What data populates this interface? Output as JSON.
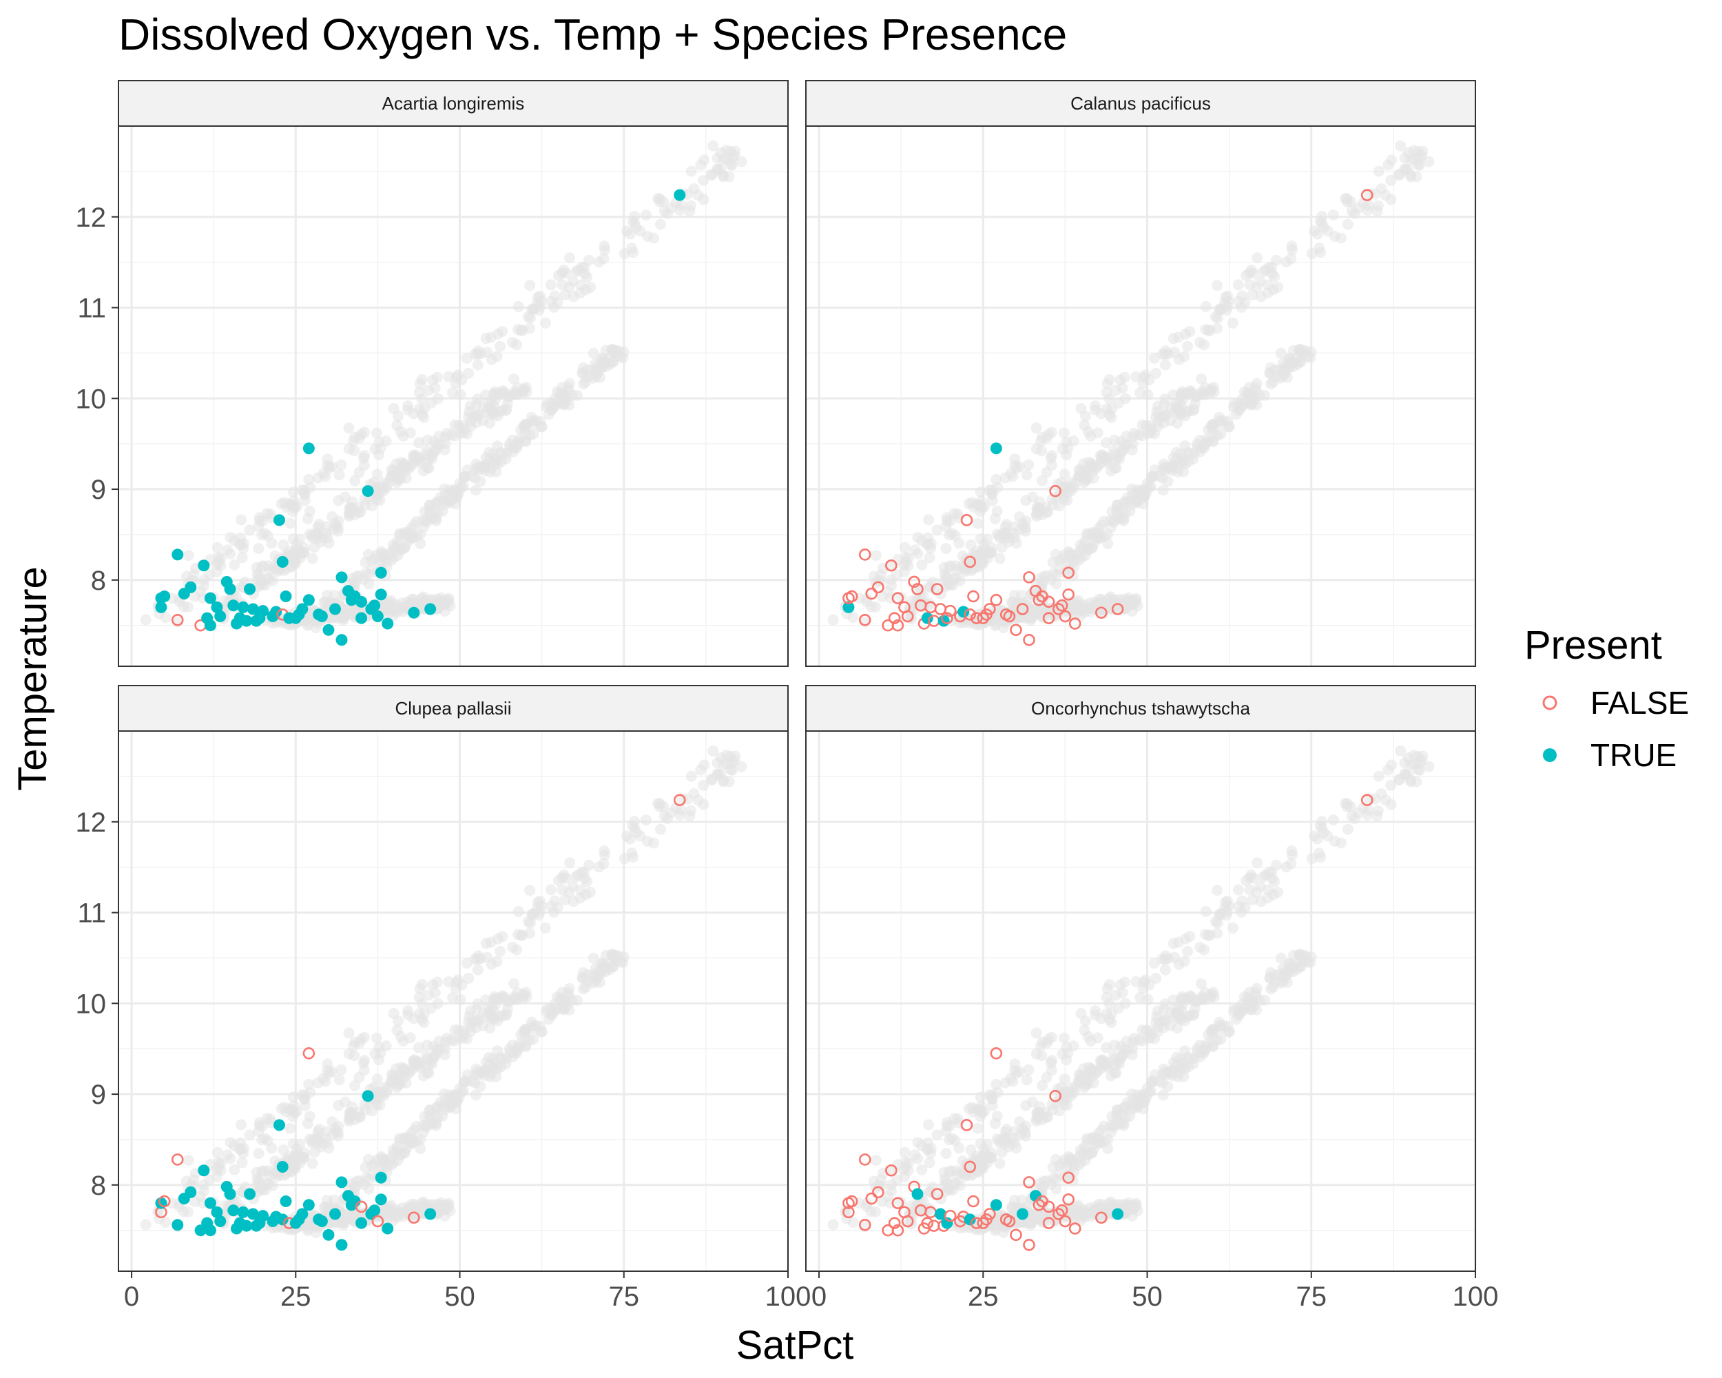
{
  "chart_data": {
    "type": "scatter",
    "title": "Dissolved Oxygen vs. Temp + Species Presence",
    "xlabel": "SatPct",
    "ylabel": "Temperature",
    "xlim": [
      -2,
      100
    ],
    "ylim": [
      7.05,
      13.0
    ],
    "x_ticks": [
      0,
      25,
      50,
      75,
      100
    ],
    "x_tick_labels": [
      "0",
      "25",
      "50",
      "75",
      "100"
    ],
    "y_ticks": [
      8,
      9,
      10,
      11,
      12
    ],
    "y_tick_labels": [
      "8",
      "9",
      "10",
      "11",
      "12"
    ],
    "grid": true,
    "legend": {
      "title": "Present",
      "position": "right",
      "entries": [
        {
          "label": "FALSE",
          "style": "open-circle",
          "color": "#F8766D"
        },
        {
          "label": "TRUE",
          "style": "filled-circle",
          "color": "#00BFC4"
        }
      ]
    },
    "colors": {
      "false": "#F8766D",
      "true": "#00BFC4",
      "background_points": "#E3E3E3",
      "strip": "#F2F2F2"
    },
    "background_clusters": [
      {
        "from": [
          3,
          7.6
        ],
        "to": [
          92,
          12.7
        ],
        "spread": 0.38
      },
      {
        "from": [
          14,
          7.7
        ],
        "to": [
          60,
          10.2
        ],
        "spread": 0.22
      },
      {
        "from": [
          28,
          7.55
        ],
        "to": [
          75,
          10.6
        ],
        "spread": 0.18
      },
      {
        "from": [
          22,
          7.55
        ],
        "to": [
          48,
          7.75
        ],
        "spread": 0.12
      }
    ],
    "samples": [
      [
        4.5,
        7.7
      ],
      [
        4.5,
        7.8
      ],
      [
        5.0,
        7.82
      ],
      [
        7.0,
        8.28
      ],
      [
        7.0,
        7.56
      ],
      [
        8.0,
        7.85
      ],
      [
        9.0,
        7.92
      ],
      [
        10.5,
        7.5
      ],
      [
        11.0,
        8.16
      ],
      [
        11.5,
        7.58
      ],
      [
        12.0,
        7.5
      ],
      [
        12.0,
        7.8
      ],
      [
        13.0,
        7.7
      ],
      [
        13.5,
        7.6
      ],
      [
        14.5,
        7.98
      ],
      [
        15.0,
        7.9
      ],
      [
        15.5,
        7.72
      ],
      [
        16.0,
        7.52
      ],
      [
        16.5,
        7.58
      ],
      [
        17.0,
        7.7
      ],
      [
        17.5,
        7.55
      ],
      [
        18.0,
        7.9
      ],
      [
        18.5,
        7.68
      ],
      [
        19.0,
        7.55
      ],
      [
        19.5,
        7.58
      ],
      [
        20.0,
        7.66
      ],
      [
        21.5,
        7.6
      ],
      [
        22.0,
        7.65
      ],
      [
        22.5,
        8.66
      ],
      [
        23.0,
        8.2
      ],
      [
        23.0,
        7.62
      ],
      [
        23.5,
        7.82
      ],
      [
        24.0,
        7.58
      ],
      [
        25.0,
        7.58
      ],
      [
        25.5,
        7.62
      ],
      [
        26.0,
        7.68
      ],
      [
        27.0,
        9.45
      ],
      [
        27.0,
        7.78
      ],
      [
        28.5,
        7.62
      ],
      [
        29.0,
        7.6
      ],
      [
        30.0,
        7.45
      ],
      [
        31.0,
        7.68
      ],
      [
        32.0,
        7.34
      ],
      [
        32.0,
        8.03
      ],
      [
        33.0,
        7.88
      ],
      [
        33.5,
        7.78
      ],
      [
        34.0,
        7.82
      ],
      [
        35.0,
        7.58
      ],
      [
        35.0,
        7.76
      ],
      [
        36.0,
        8.98
      ],
      [
        36.5,
        7.68
      ],
      [
        37.0,
        7.72
      ],
      [
        37.5,
        7.6
      ],
      [
        38.0,
        8.08
      ],
      [
        38.0,
        7.84
      ],
      [
        39.0,
        7.52
      ],
      [
        43.0,
        7.64
      ],
      [
        45.5,
        7.68
      ],
      [
        83.5,
        12.24
      ]
    ],
    "panels": [
      {
        "strip": "Acartia longiremis",
        "present": [
          1,
          1,
          1,
          1,
          0,
          1,
          1,
          0,
          1,
          1,
          1,
          1,
          1,
          1,
          1,
          1,
          1,
          1,
          1,
          1,
          1,
          1,
          1,
          1,
          1,
          1,
          1,
          1,
          1,
          1,
          0,
          1,
          1,
          1,
          1,
          1,
          1,
          1,
          1,
          1,
          1,
          1,
          1,
          1,
          1,
          1,
          1,
          1,
          1,
          1,
          1,
          1,
          1,
          1,
          1,
          1,
          1,
          1,
          1
        ]
      },
      {
        "strip": "Calanus pacificus",
        "present": [
          1,
          0,
          0,
          0,
          0,
          0,
          0,
          0,
          0,
          0,
          0,
          0,
          0,
          0,
          0,
          0,
          0,
          0,
          1,
          0,
          0,
          0,
          0,
          1,
          0,
          0,
          0,
          1,
          0,
          0,
          0,
          0,
          0,
          0,
          0,
          0,
          1,
          0,
          0,
          0,
          0,
          0,
          0,
          0,
          0,
          0,
          0,
          0,
          0,
          0,
          0,
          0,
          0,
          0,
          0,
          0,
          0,
          0,
          0
        ]
      },
      {
        "strip": "Clupea pallasii",
        "present": [
          0,
          1,
          0,
          0,
          1,
          1,
          1,
          1,
          1,
          1,
          1,
          1,
          1,
          1,
          1,
          1,
          1,
          1,
          1,
          1,
          1,
          1,
          1,
          1,
          1,
          1,
          1,
          1,
          1,
          1,
          1,
          1,
          0,
          1,
          1,
          1,
          0,
          1,
          1,
          1,
          1,
          1,
          1,
          1,
          1,
          1,
          1,
          1,
          0,
          1,
          1,
          1,
          0,
          1,
          1,
          1,
          0,
          1,
          0
        ]
      },
      {
        "strip": "Oncorhynchus tshawytscha",
        "present": [
          0,
          0,
          0,
          0,
          0,
          0,
          0,
          0,
          0,
          0,
          0,
          0,
          0,
          0,
          0,
          1,
          0,
          0,
          0,
          0,
          0,
          0,
          1,
          0,
          1,
          0,
          0,
          0,
          0,
          0,
          1,
          0,
          0,
          0,
          0,
          0,
          0,
          1,
          0,
          0,
          0,
          1,
          0,
          0,
          1,
          0,
          0,
          0,
          0,
          0,
          0,
          0,
          0,
          0,
          0,
          0,
          0,
          1,
          0
        ]
      }
    ]
  }
}
